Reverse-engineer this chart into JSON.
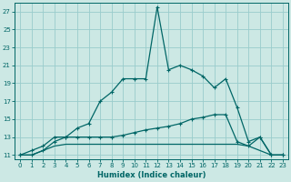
{
  "xlabel": "Humidex (Indice chaleur)",
  "background_color": "#cce8e4",
  "grid_color": "#99cccc",
  "line_color": "#006666",
  "xlim": [
    -0.5,
    23.5
  ],
  "ylim": [
    10.5,
    28
  ],
  "yticks": [
    11,
    13,
    15,
    17,
    19,
    21,
    23,
    25,
    27
  ],
  "xticks": [
    0,
    1,
    2,
    3,
    4,
    5,
    6,
    7,
    8,
    9,
    10,
    11,
    12,
    13,
    14,
    15,
    16,
    17,
    18,
    19,
    20,
    21,
    22,
    23
  ],
  "series": [
    {
      "x": [
        0,
        1,
        2,
        3,
        4,
        5,
        6,
        7,
        8,
        9,
        10,
        11,
        12,
        13,
        14,
        15,
        16,
        17,
        18,
        19,
        20,
        21,
        22,
        23
      ],
      "y": [
        11,
        11.5,
        12,
        13,
        13,
        14,
        14.5,
        17,
        18,
        19.5,
        19.5,
        19.5,
        27.5,
        20.5,
        21,
        20.5,
        19.8,
        18.5,
        19.5,
        16.3,
        12.5,
        13,
        11,
        11
      ],
      "marker": true
    },
    {
      "x": [
        0,
        1,
        2,
        3,
        4,
        5,
        6,
        7,
        8,
        9,
        10,
        11,
        12,
        13,
        14,
        15,
        16,
        17,
        18,
        19,
        20,
        21,
        22,
        23
      ],
      "y": [
        11,
        11,
        11.5,
        12.5,
        13,
        13,
        13,
        13,
        13,
        13.2,
        13.5,
        13.8,
        14,
        14.2,
        14.5,
        15,
        15.2,
        15.5,
        15.5,
        12.5,
        12,
        13,
        11,
        11
      ],
      "marker": true
    },
    {
      "x": [
        0,
        1,
        2,
        3,
        4,
        5,
        6,
        7,
        8,
        9,
        10,
        11,
        12,
        13,
        14,
        15,
        16,
        17,
        18,
        19,
        20,
        21,
        22,
        23
      ],
      "y": [
        11,
        11,
        11.5,
        12.0,
        12.2,
        12.2,
        12.2,
        12.2,
        12.2,
        12.2,
        12.2,
        12.2,
        12.2,
        12.2,
        12.2,
        12.2,
        12.2,
        12.2,
        12.2,
        12.2,
        12.0,
        11.5,
        11,
        11
      ],
      "marker": false
    }
  ],
  "tick_fontsize": 5.0,
  "xlabel_fontsize": 6.0,
  "linewidth": 0.9,
  "markersize": 3.5
}
